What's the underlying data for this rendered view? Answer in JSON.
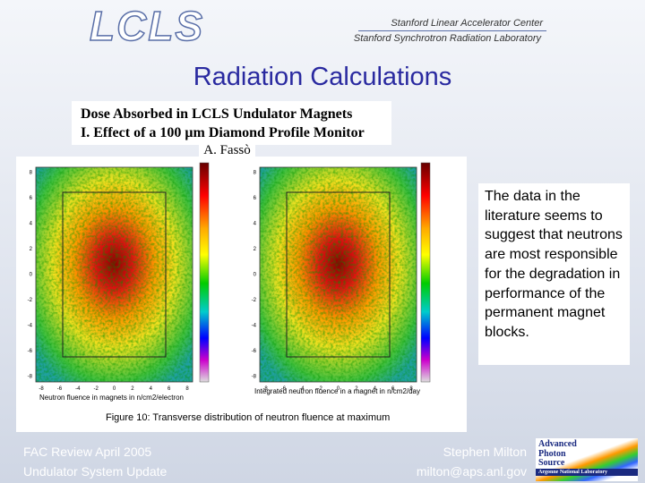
{
  "header": {
    "logo": "LCLS",
    "lab1": "Stanford Linear Accelerator Center",
    "lab2": "Stanford Synchrotron Radiation Laboratory"
  },
  "title": "Radiation Calculations",
  "figure": {
    "heading1": "Dose Absorbed in LCLS Undulator Magnets",
    "heading2": "I. Effect of a 100 μm Diamond Profile Monitor",
    "author": "A. Fassò",
    "left_caption": "Neutron fluence in magnets in n/cm2/electron",
    "right_caption": "Integrated neutron fluence in a magnet in n/cm2/day",
    "caption": "Figure 10: Transverse distribution of neutron fluence at maximum",
    "yticks": [
      "8",
      "6",
      "4",
      "2",
      "0",
      "-2",
      "-4",
      "-6",
      "-8"
    ],
    "xticks": [
      "-8",
      "-6",
      "-4",
      "-2",
      "0",
      "2",
      "4",
      "6",
      "8"
    ]
  },
  "note": "The data in the literature seems to suggest that neutrons are most responsible for the degradation in performance of the permanent magnet blocks.",
  "footer": {
    "left1": "FAC Review April 2005",
    "left2": "Undulator System Update",
    "right1": "Stephen Milton",
    "right2": "milton@aps.anl.gov"
  },
  "aps_logo": {
    "line1": "Advanced",
    "line2": "Photon",
    "line3": "Source",
    "line4": "Argonne National Laboratory"
  }
}
